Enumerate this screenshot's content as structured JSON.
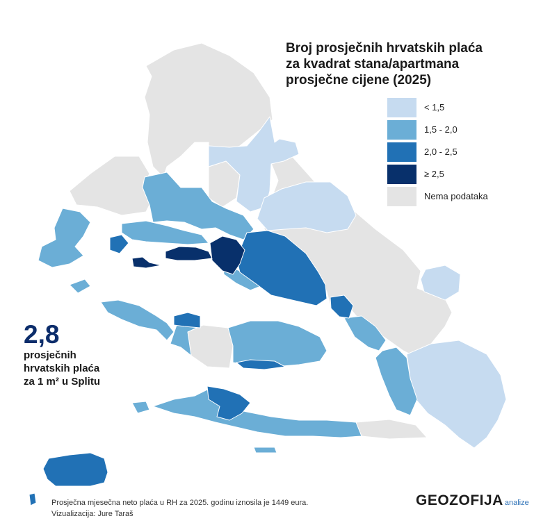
{
  "title": {
    "line1": "Broj prosječnih hrvatskih plaća",
    "line2": "za kvadrat stana/apartmana",
    "line3": "prosječne cijene (2025)"
  },
  "legend": {
    "items": [
      {
        "label": "< 1,5",
        "color": "#c6dbf0"
      },
      {
        "label": "1,5 - 2,0",
        "color": "#6baed6"
      },
      {
        "label": "2,0 - 2,5",
        "color": "#2171b5"
      },
      {
        "label": "≥ 2,5",
        "color": "#08306b"
      },
      {
        "label": "Nema podataka",
        "color": "#e4e4e4"
      }
    ]
  },
  "callout": {
    "value": "2,8",
    "line1": "prosječnih",
    "line2": "hrvatskih plaća",
    "line3": "za 1 m² u Splitu"
  },
  "footnote": {
    "line1": "Prosječna mjesečna neto plaća u RH za 2025. godinu iznosila je 1449 eura.",
    "line2": "Vizualizacija: Jure Taraš"
  },
  "brand": {
    "name": "GEOZOFIJA",
    "sub": "analize"
  }
}
